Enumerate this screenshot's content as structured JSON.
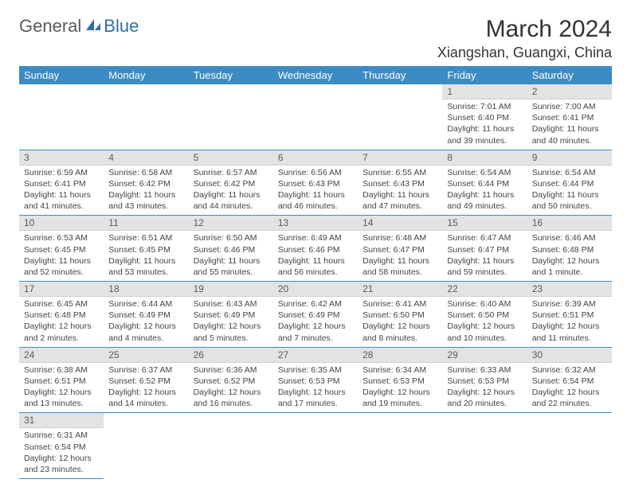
{
  "logo": {
    "textA": "General",
    "textB": "Blue"
  },
  "title": "March 2024",
  "location": "Xiangshan, Guangxi, China",
  "colors": {
    "header_bg": "#3b8bc4",
    "header_fg": "#ffffff",
    "daynum_bg": "#e3e3e3",
    "row_border": "#3b8bc4",
    "logo_blue": "#2f6fa8"
  },
  "weekdays": [
    "Sunday",
    "Monday",
    "Tuesday",
    "Wednesday",
    "Thursday",
    "Friday",
    "Saturday"
  ],
  "layout": {
    "first_weekday_index": 5,
    "days_in_month": 31
  },
  "days": {
    "1": {
      "sunrise": "7:01 AM",
      "sunset": "6:40 PM",
      "daylight": "11 hours and 39 minutes."
    },
    "2": {
      "sunrise": "7:00 AM",
      "sunset": "6:41 PM",
      "daylight": "11 hours and 40 minutes."
    },
    "3": {
      "sunrise": "6:59 AM",
      "sunset": "6:41 PM",
      "daylight": "11 hours and 41 minutes."
    },
    "4": {
      "sunrise": "6:58 AM",
      "sunset": "6:42 PM",
      "daylight": "11 hours and 43 minutes."
    },
    "5": {
      "sunrise": "6:57 AM",
      "sunset": "6:42 PM",
      "daylight": "11 hours and 44 minutes."
    },
    "6": {
      "sunrise": "6:56 AM",
      "sunset": "6:43 PM",
      "daylight": "11 hours and 46 minutes."
    },
    "7": {
      "sunrise": "6:55 AM",
      "sunset": "6:43 PM",
      "daylight": "11 hours and 47 minutes."
    },
    "8": {
      "sunrise": "6:54 AM",
      "sunset": "6:44 PM",
      "daylight": "11 hours and 49 minutes."
    },
    "9": {
      "sunrise": "6:54 AM",
      "sunset": "6:44 PM",
      "daylight": "11 hours and 50 minutes."
    },
    "10": {
      "sunrise": "6:53 AM",
      "sunset": "6:45 PM",
      "daylight": "11 hours and 52 minutes."
    },
    "11": {
      "sunrise": "6:51 AM",
      "sunset": "6:45 PM",
      "daylight": "11 hours and 53 minutes."
    },
    "12": {
      "sunrise": "6:50 AM",
      "sunset": "6:46 PM",
      "daylight": "11 hours and 55 minutes."
    },
    "13": {
      "sunrise": "6:49 AM",
      "sunset": "6:46 PM",
      "daylight": "11 hours and 56 minutes."
    },
    "14": {
      "sunrise": "6:48 AM",
      "sunset": "6:47 PM",
      "daylight": "11 hours and 58 minutes."
    },
    "15": {
      "sunrise": "6:47 AM",
      "sunset": "6:47 PM",
      "daylight": "11 hours and 59 minutes."
    },
    "16": {
      "sunrise": "6:46 AM",
      "sunset": "6:48 PM",
      "daylight": "12 hours and 1 minute."
    },
    "17": {
      "sunrise": "6:45 AM",
      "sunset": "6:48 PM",
      "daylight": "12 hours and 2 minutes."
    },
    "18": {
      "sunrise": "6:44 AM",
      "sunset": "6:49 PM",
      "daylight": "12 hours and 4 minutes."
    },
    "19": {
      "sunrise": "6:43 AM",
      "sunset": "6:49 PM",
      "daylight": "12 hours and 5 minutes."
    },
    "20": {
      "sunrise": "6:42 AM",
      "sunset": "6:49 PM",
      "daylight": "12 hours and 7 minutes."
    },
    "21": {
      "sunrise": "6:41 AM",
      "sunset": "6:50 PM",
      "daylight": "12 hours and 8 minutes."
    },
    "22": {
      "sunrise": "6:40 AM",
      "sunset": "6:50 PM",
      "daylight": "12 hours and 10 minutes."
    },
    "23": {
      "sunrise": "6:39 AM",
      "sunset": "6:51 PM",
      "daylight": "12 hours and 11 minutes."
    },
    "24": {
      "sunrise": "6:38 AM",
      "sunset": "6:51 PM",
      "daylight": "12 hours and 13 minutes."
    },
    "25": {
      "sunrise": "6:37 AM",
      "sunset": "6:52 PM",
      "daylight": "12 hours and 14 minutes."
    },
    "26": {
      "sunrise": "6:36 AM",
      "sunset": "6:52 PM",
      "daylight": "12 hours and 16 minutes."
    },
    "27": {
      "sunrise": "6:35 AM",
      "sunset": "6:53 PM",
      "daylight": "12 hours and 17 minutes."
    },
    "28": {
      "sunrise": "6:34 AM",
      "sunset": "6:53 PM",
      "daylight": "12 hours and 19 minutes."
    },
    "29": {
      "sunrise": "6:33 AM",
      "sunset": "6:53 PM",
      "daylight": "12 hours and 20 minutes."
    },
    "30": {
      "sunrise": "6:32 AM",
      "sunset": "6:54 PM",
      "daylight": "12 hours and 22 minutes."
    },
    "31": {
      "sunrise": "6:31 AM",
      "sunset": "6:54 PM",
      "daylight": "12 hours and 23 minutes."
    }
  },
  "labels": {
    "sunrise": "Sunrise:",
    "sunset": "Sunset:",
    "daylight": "Daylight:"
  }
}
